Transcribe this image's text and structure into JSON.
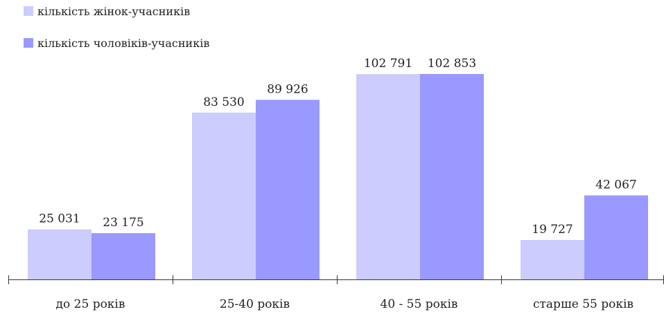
{
  "chart_data": {
    "type": "bar",
    "title": "",
    "xlabel": "",
    "ylabel": "",
    "categories": [
      "до 25 років",
      "25-40 років",
      "40 - 55 років",
      "старше 55 років"
    ],
    "series": [
      {
        "name": "кількість жінок-учасників",
        "color": "#ccccff",
        "values": [
          25031,
          83530,
          102791,
          19727
        ],
        "labels": [
          "25 031",
          "83 530",
          "102 791",
          "19 727"
        ]
      },
      {
        "name": "кількість чоловіків-учасників",
        "color": "#9999ff",
        "values": [
          23175,
          89926,
          102853,
          42067
        ],
        "labels": [
          "23 175",
          "89 926",
          "102 853",
          "42 067"
        ]
      }
    ],
    "ylim": [
      0,
      115000
    ],
    "grid": false,
    "legend": "top-left",
    "axis_color": "#333333"
  }
}
